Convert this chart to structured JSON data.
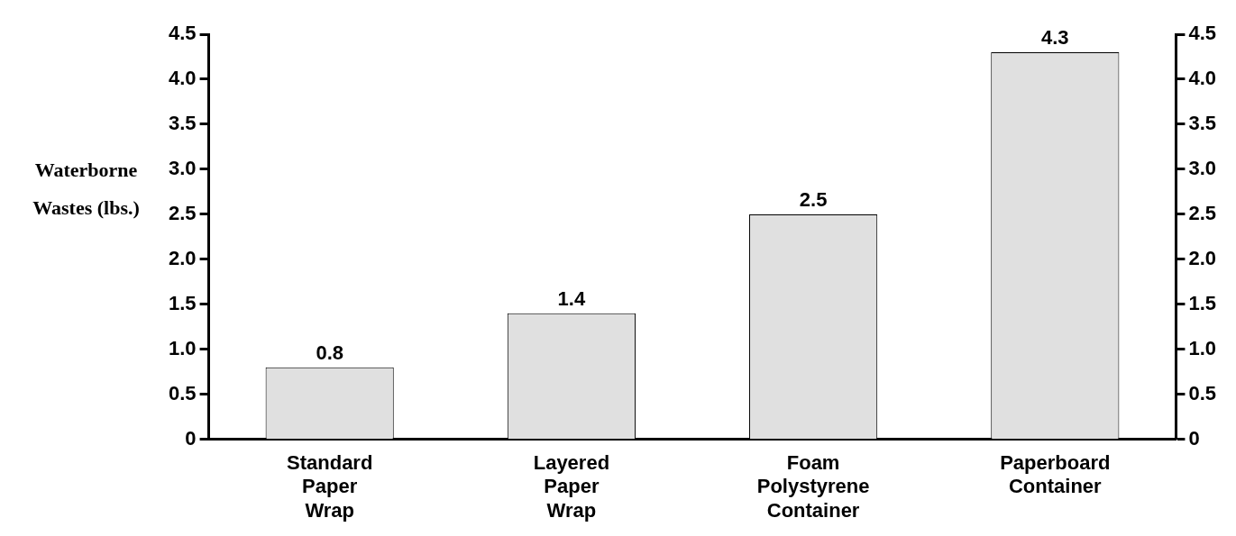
{
  "chart_data": {
    "type": "bar",
    "ylabel": "Waterborne Wastes (lbs.)",
    "categories": [
      "Standard Paper Wrap",
      "Layered Paper Wrap",
      "Foam Polystyrene Container",
      "Paperboard Container"
    ],
    "values": [
      0.8,
      1.4,
      2.5,
      4.3
    ],
    "color": "#e0e0e0",
    "ylim": [
      0,
      4.5
    ],
    "yticks": [
      0,
      0.5,
      {
        "value": 1,
        "label": "1.0"
      },
      1.5,
      {
        "value": 2,
        "label": "2.0"
      },
      2.5,
      {
        "value": 3,
        "label": "3.0"
      },
      3.5,
      {
        "value": 4,
        "label": "4.0"
      },
      4.5
    ],
    "y2lim": [
      0,
      4.5
    ],
    "y2ticks": [
      0,
      0.5,
      {
        "value": 1,
        "label": "1.0"
      },
      1.5,
      {
        "value": 2,
        "label": "2.0"
      },
      2.5,
      {
        "value": 3,
        "label": "3.0"
      },
      3.5,
      {
        "value": 4,
        "label": "4.0"
      },
      4.5
    ],
    "data_labels": true,
    "grid": false,
    "legend": false
  }
}
